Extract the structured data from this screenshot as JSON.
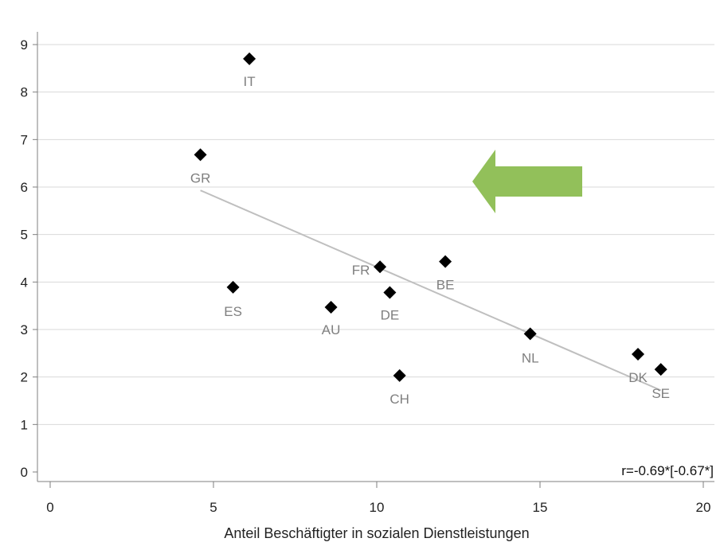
{
  "chart_data": {
    "type": "scatter",
    "xlabel": "Anteil Beschäftigter in sozialen Dienstleistungen",
    "ylabel": "",
    "xlim": [
      0,
      20
    ],
    "ylim": [
      0,
      9
    ],
    "xticks": [
      "0",
      "5",
      "10",
      "15",
      "20"
    ],
    "yticks": [
      "0",
      "1",
      "2",
      "3",
      "4",
      "5",
      "6",
      "7",
      "8",
      "9"
    ],
    "grid": "horizontal",
    "points": [
      {
        "label": "IT",
        "x": 6.1,
        "y": 8.7
      },
      {
        "label": "GR",
        "x": 4.6,
        "y": 6.68
      },
      {
        "label": "ES",
        "x": 5.6,
        "y": 3.89
      },
      {
        "label": "AU",
        "x": 8.6,
        "y": 3.47
      },
      {
        "label": "FR",
        "x": 10.1,
        "y": 4.32
      },
      {
        "label": "DE",
        "x": 10.4,
        "y": 3.78
      },
      {
        "label": "BE",
        "x": 12.1,
        "y": 4.43
      },
      {
        "label": "CH",
        "x": 10.7,
        "y": 2.03
      },
      {
        "label": "NL",
        "x": 14.7,
        "y": 2.91
      },
      {
        "label": "DK",
        "x": 18.0,
        "y": 2.48
      },
      {
        "label": "SE",
        "x": 18.7,
        "y": 2.16
      }
    ],
    "trendline": {
      "x1": 4.6,
      "y1": 5.93,
      "x2": 18.7,
      "y2": 1.72
    },
    "annotation": "r=-0.69*[-0.67*]",
    "arrow": {
      "direction": "left",
      "color": "#92c05a"
    },
    "colors": {
      "marker": "#000000",
      "label": "#7f7f7f",
      "trend": "#bfbfbf",
      "grid": "#d9d9d9"
    }
  }
}
